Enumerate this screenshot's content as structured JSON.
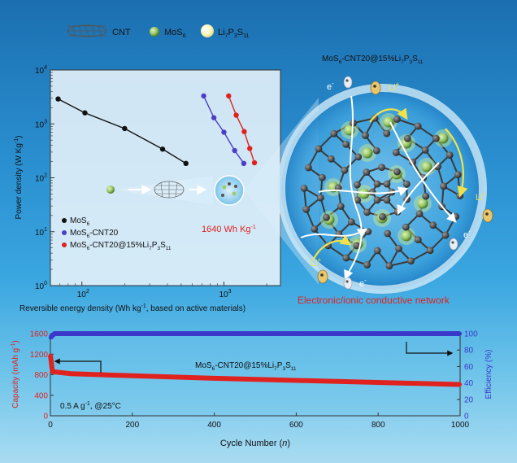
{
  "legend_top": {
    "cnt": "CNT",
    "mos6_pre": "MoS",
    "mos6_sub": "6",
    "lps": {
      "a": "Li",
      "a_sub": "7",
      "b": "P",
      "b_sub": "3",
      "c": "S",
      "c_sub": "11"
    }
  },
  "sphere": {
    "title": {
      "a": "MoS",
      "a_sub": "6",
      "b": "-CNT20@15%Li",
      "b_sub": "7",
      "c": "P",
      "c_sub": "3",
      "d": "S",
      "d_sub": "11"
    },
    "li_label": "Li",
    "li_sup": "+",
    "e_label": "e",
    "e_sup": "-",
    "network_caption": "Electronic/ionic conductive network"
  },
  "ragone": {
    "ylabel": {
      "main": "Power density (W Kg",
      "sup": "-1",
      "end": ")"
    },
    "xlabel": {
      "main": "Reversible energy density (Wh kg",
      "sup": "-1",
      "end": ", based on active materials)"
    },
    "yticks": [
      {
        "base": "10",
        "exp": "0",
        "v": 0
      },
      {
        "base": "10",
        "exp": "1",
        "v": 1
      },
      {
        "base": "10",
        "exp": "2",
        "v": 2
      },
      {
        "base": "10",
        "exp": "3",
        "v": 3
      },
      {
        "base": "10",
        "exp": "4",
        "v": 4
      }
    ],
    "xticks": [
      {
        "base": "10",
        "exp": "2",
        "v": 2
      },
      {
        "base": "10",
        "exp": "3",
        "v": 3
      }
    ],
    "energy_label": {
      "main": "1640 Wh Kg",
      "sup": "-1"
    },
    "legend": [
      {
        "pre": "MoS",
        "sub": "6",
        "post": "",
        "color": "#111111"
      },
      {
        "pre": "MoS",
        "sub": "6",
        "post": "-CNT20",
        "color": "#4b3fc6"
      },
      {
        "pre": "MoS",
        "sub": "6",
        "post": "-CNT20@15%Li",
        "sub2": "7",
        "post2": "P",
        "sub3": "3",
        "post3": "S",
        "sub4": "11",
        "color": "#e0221f"
      }
    ]
  },
  "cycling": {
    "ylabel_left": {
      "main": "Capacity (mAh g",
      "sup": "-1",
      "end": ")"
    },
    "ylabel_right": "Efficiency (%)",
    "xlabel": {
      "main": "Cycle Number (",
      "it": "n",
      "end": ")"
    },
    "yticks_left": [
      "0",
      "400",
      "800",
      "1200",
      "1600"
    ],
    "yticks_right": [
      "0",
      "20",
      "40",
      "60",
      "80",
      "100"
    ],
    "xticks": [
      "0",
      "200",
      "400",
      "600",
      "800",
      "1000"
    ],
    "series_label": {
      "a": "MoS",
      "a_sub": "6",
      "b": "-CNT20@15%Li",
      "b_sub": "7",
      "c": "P",
      "c_sub": "3",
      "d": "S",
      "d_sub": "11"
    },
    "condition": {
      "main": "0.5 A g",
      "sup": "-1",
      "end": ", @25°C"
    }
  },
  "colors": {
    "mos6": "#111111",
    "cnt20": "#4b3fc6",
    "lps": "#e0221f",
    "capacity": "#e0221f",
    "efficiency": "#3b39c9",
    "network_text": "#e0221f"
  },
  "chart_data": [
    {
      "type": "line",
      "title": "",
      "xlabel": "Reversible energy density (Wh kg-1, based on active materials)",
      "ylabel": "Power density (W Kg-1)",
      "x_scale": "log",
      "y_scale": "log",
      "xlim": [
        60,
        2500
      ],
      "ylim": [
        1,
        10000
      ],
      "legend_position": "bottom-left",
      "series": [
        {
          "name": "MoS6",
          "color": "#111111",
          "x": [
            68,
            105,
            200,
            370,
            540
          ],
          "y": [
            2900,
            1600,
            820,
            340,
            185
          ]
        },
        {
          "name": "MoS6-CNT20",
          "color": "#4b3fc6",
          "x": [
            720,
            850,
            1000,
            1190,
            1380
          ],
          "y": [
            3300,
            1300,
            700,
            320,
            185
          ]
        },
        {
          "name": "MoS6-CNT20@15%Li7P3S11",
          "color": "#e0221f",
          "x": [
            1080,
            1220,
            1390,
            1520,
            1640
          ],
          "y": [
            3300,
            1450,
            720,
            350,
            190
          ]
        }
      ],
      "annotations": [
        "1640 Wh Kg-1"
      ]
    },
    {
      "type": "line",
      "title": "",
      "xlabel": "Cycle Number (n)",
      "ylabel": "Capacity (mAh g-1)",
      "ylabel_right": "Efficiency (%)",
      "xlim": [
        0,
        1000
      ],
      "ylim": [
        0,
        1600
      ],
      "ylim_right": [
        0,
        100
      ],
      "series": [
        {
          "name": "MoS6-CNT20@15%Li7P3S11",
          "axis": "left",
          "color": "#e0221f",
          "x": [
            0,
            5,
            50,
            200,
            400,
            600,
            800,
            1000
          ],
          "y": [
            1180,
            860,
            820,
            780,
            730,
            690,
            650,
            610
          ]
        },
        {
          "name": "Efficiency",
          "axis": "right",
          "color": "#3b39c9",
          "x": [
            0,
            10,
            200,
            400,
            600,
            800,
            1000
          ],
          "y": [
            95,
            100,
            100,
            100,
            100,
            100,
            100
          ]
        }
      ],
      "annotations": [
        "0.5 A g-1, @25°C"
      ]
    }
  ]
}
